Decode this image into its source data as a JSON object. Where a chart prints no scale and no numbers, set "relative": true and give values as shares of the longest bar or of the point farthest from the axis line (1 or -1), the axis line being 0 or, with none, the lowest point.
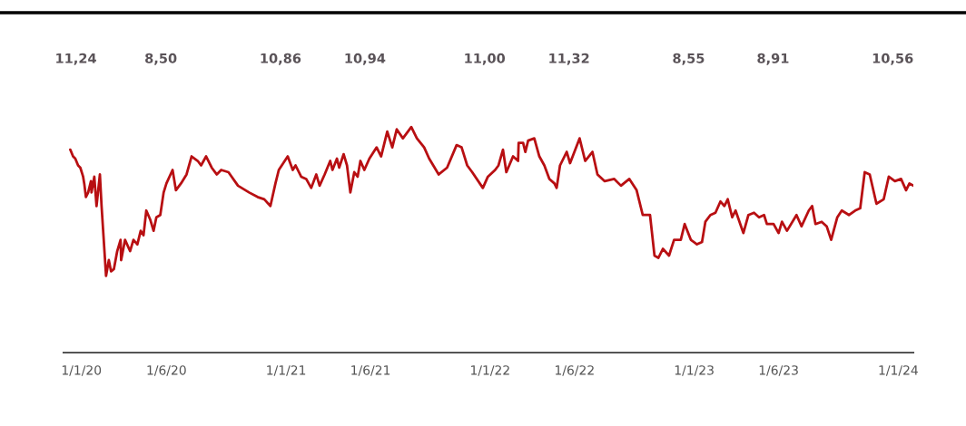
{
  "chart_data": {
    "type": "line",
    "relative": true,
    "x": [
      "2019-12-12",
      "2019-12-17",
      "2019-12-21",
      "2019-12-26",
      "2019-12-30",
      "2020-01-04",
      "2020-01-06",
      "2020-01-09",
      "2020-01-13",
      "2020-01-18",
      "2020-01-19",
      "2020-01-24",
      "2020-01-28",
      "2020-02-03",
      "2020-02-06",
      "2020-02-14",
      "2020-02-19",
      "2020-02-23",
      "2020-02-28",
      "2020-03-05",
      "2020-03-11",
      "2020-03-12",
      "2020-03-19",
      "2020-03-28",
      "2020-04-03",
      "2020-04-10",
      "2020-04-16",
      "2020-04-21",
      "2020-04-26",
      "2020-05-03",
      "2020-05-09",
      "2020-05-14",
      "2020-05-21",
      "2020-05-27",
      "2020-06-01",
      "2020-06-12",
      "2020-06-18",
      "2020-06-27",
      "2020-07-07",
      "2020-07-16",
      "2020-07-27",
      "2020-08-02",
      "2020-08-11",
      "2020-08-21",
      "2020-08-30",
      "2020-09-07",
      "2020-09-20",
      "2020-10-07",
      "2020-10-27",
      "2020-11-11",
      "2020-11-23",
      "2020-12-04",
      "2020-12-13",
      "2020-12-19",
      "2021-01-04",
      "2021-01-13",
      "2021-01-18",
      "2021-01-28",
      "2021-02-06",
      "2021-02-15",
      "2021-02-24",
      "2021-03-02",
      "2021-03-11",
      "2021-03-21",
      "2021-03-25",
      "2021-04-02",
      "2021-04-06",
      "2021-04-14",
      "2021-04-20",
      "2021-04-26",
      "2021-05-03",
      "2021-05-09",
      "2021-05-14",
      "2021-05-21",
      "2021-05-30",
      "2021-06-12",
      "2021-06-20",
      "2021-07-01",
      "2021-07-10",
      "2021-07-18",
      "2021-07-29",
      "2021-08-13",
      "2021-08-23",
      "2021-09-05",
      "2021-09-14",
      "2021-10-01",
      "2021-10-16",
      "2021-11-02",
      "2021-11-11",
      "2021-11-21",
      "2021-11-30",
      "2021-12-19",
      "2021-12-28",
      "2022-01-10",
      "2022-01-16",
      "2022-01-24",
      "2022-01-30",
      "2022-02-11",
      "2022-02-20",
      "2022-02-21",
      "2022-03-01",
      "2022-03-05",
      "2022-03-10",
      "2022-03-21",
      "2022-03-30",
      "2022-04-08",
      "2022-04-17",
      "2022-04-26",
      "2022-04-30",
      "2022-05-06",
      "2022-05-18",
      "2022-05-24",
      "2022-06-10",
      "2022-06-20",
      "2022-07-03",
      "2022-07-12",
      "2022-07-25",
      "2022-08-11",
      "2022-08-23",
      "2022-09-07",
      "2022-09-20",
      "2022-10-01",
      "2022-10-14",
      "2022-10-22",
      "2022-10-29",
      "2022-11-06",
      "2022-11-17",
      "2022-11-26",
      "2022-12-08",
      "2022-12-15",
      "2022-12-26",
      "2023-01-06",
      "2023-01-15",
      "2023-01-21",
      "2023-01-30",
      "2023-02-08",
      "2023-02-17",
      "2023-02-24",
      "2023-03-02",
      "2023-03-10",
      "2023-03-16",
      "2023-03-30",
      "2023-04-08",
      "2023-04-18",
      "2023-04-27",
      "2023-05-06",
      "2023-05-11",
      "2023-05-23",
      "2023-06-01",
      "2023-06-07",
      "2023-06-16",
      "2023-07-03",
      "2023-07-12",
      "2023-07-25",
      "2023-07-31",
      "2023-08-06",
      "2023-08-17",
      "2023-08-26",
      "2023-09-03",
      "2023-09-14",
      "2023-09-22",
      "2023-10-05",
      "2023-10-16",
      "2023-10-25",
      "2023-11-02",
      "2023-11-11",
      "2023-11-23",
      "2023-12-06",
      "2023-12-15",
      "2023-12-26",
      "2024-01-06",
      "2024-01-15",
      "2024-01-21",
      "2024-01-28"
    ],
    "series": [
      {
        "color": "#b80f12",
        "values": [
          0.9,
          0.87,
          0.86,
          0.83,
          0.82,
          0.78,
          0.75,
          0.69,
          0.71,
          0.76,
          0.71,
          0.78,
          0.65,
          0.79,
          0.65,
          0.34,
          0.41,
          0.36,
          0.37,
          0.45,
          0.5,
          0.41,
          0.5,
          0.45,
          0.5,
          0.48,
          0.54,
          0.52,
          0.63,
          0.59,
          0.54,
          0.6,
          0.61,
          0.71,
          0.75,
          0.81,
          0.72,
          0.75,
          0.79,
          0.87,
          0.85,
          0.83,
          0.87,
          0.82,
          0.79,
          0.81,
          0.8,
          0.74,
          0.71,
          0.69,
          0.68,
          0.65,
          0.75,
          0.81,
          0.87,
          0.81,
          0.83,
          0.78,
          0.77,
          0.73,
          0.79,
          0.74,
          0.79,
          0.85,
          0.81,
          0.86,
          0.82,
          0.88,
          0.83,
          0.71,
          0.8,
          0.78,
          0.85,
          0.81,
          0.86,
          0.91,
          0.87,
          0.98,
          0.91,
          0.99,
          0.95,
          1.0,
          0.95,
          0.91,
          0.86,
          0.79,
          0.82,
          0.92,
          0.91,
          0.83,
          0.8,
          0.73,
          0.78,
          0.81,
          0.83,
          0.9,
          0.8,
          0.87,
          0.85,
          0.93,
          0.93,
          0.89,
          0.94,
          0.95,
          0.87,
          0.83,
          0.77,
          0.75,
          0.73,
          0.83,
          0.89,
          0.84,
          0.95,
          0.85,
          0.89,
          0.79,
          0.76,
          0.77,
          0.74,
          0.77,
          0.72,
          0.61,
          0.61,
          0.43,
          0.42,
          0.46,
          0.43,
          0.5,
          0.5,
          0.57,
          0.5,
          0.48,
          0.49,
          0.58,
          0.61,
          0.62,
          0.67,
          0.65,
          0.68,
          0.6,
          0.63,
          0.53,
          0.61,
          0.62,
          0.6,
          0.61,
          0.57,
          0.57,
          0.53,
          0.58,
          0.54,
          0.61,
          0.56,
          0.63,
          0.65,
          0.57,
          0.58,
          0.56,
          0.5,
          0.6,
          0.63,
          0.61,
          0.63,
          0.64,
          0.8,
          0.79,
          0.66,
          0.68,
          0.78,
          0.76,
          0.77,
          0.72,
          0.75,
          0.74
        ]
      }
    ],
    "xlim": [
      "2019-11-30",
      "2024-01-28"
    ],
    "xticks": [
      {
        "value": "2020-01-01",
        "label": "1/1/20"
      },
      {
        "value": "2020-06-01",
        "label": "1/6/20"
      },
      {
        "value": "2021-01-01",
        "label": "1/1/21"
      },
      {
        "value": "2021-06-01",
        "label": "1/6/21"
      },
      {
        "value": "2022-01-01",
        "label": "1/1/22"
      },
      {
        "value": "2022-06-01",
        "label": "1/6/22"
      },
      {
        "value": "2023-01-01",
        "label": "1/1/23"
      },
      {
        "value": "2023-06-01",
        "label": "1/6/23"
      },
      {
        "value": "2024-01-01",
        "label": "1/1/24"
      }
    ],
    "annotations": [
      "11,24",
      "8,50",
      "10,86",
      "10,94",
      "11,00",
      "11,32",
      "8,55",
      "8,91",
      "10,56"
    ]
  }
}
